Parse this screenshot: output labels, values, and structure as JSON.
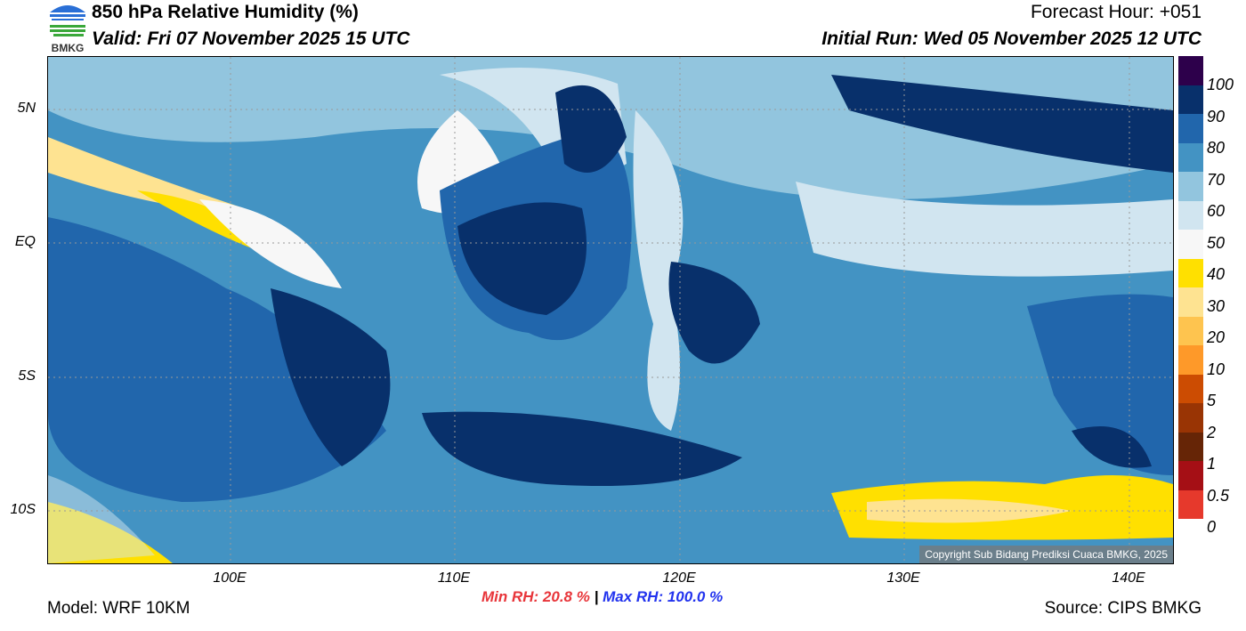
{
  "header": {
    "title": "850 hPa Relative Humidity (%)",
    "valid": "Valid: Fri 07 November 2025 15 UTC",
    "forecast_hour": "Forecast Hour: +051",
    "initial_run": "Initial Run: Wed 05 November 2025 12 UTC",
    "logo_text": "BMKG"
  },
  "map": {
    "lat_labels": [
      "5N",
      "EQ",
      "5S",
      "10S"
    ],
    "lon_labels": [
      "100E",
      "110E",
      "120E",
      "130E",
      "140E"
    ],
    "copyright": "Copyright Sub Bidang Prediksi Cuaca BMKG, 2025"
  },
  "colorbar": {
    "colors": [
      "#2d004b",
      "#08306b",
      "#2166ac",
      "#4393c3",
      "#92c5de",
      "#d1e5f0",
      "#f7f7f7",
      "#ffe000",
      "#fee391",
      "#fec44f",
      "#fe9929",
      "#cc4c02",
      "#993404",
      "#662506",
      "#a50f15",
      "#e6392c"
    ],
    "labels": [
      "100",
      "90",
      "80",
      "70",
      "60",
      "50",
      "40",
      "30",
      "20",
      "10",
      "5",
      "2",
      "1",
      "0.5",
      "0"
    ]
  },
  "footer": {
    "model": "Model: WRF 10KM",
    "min_rh": "Min RH:  20.8 %",
    "separator": "|",
    "max_rh": "Max RH: 100.0 %",
    "source": "Source: CIPS BMKG"
  }
}
